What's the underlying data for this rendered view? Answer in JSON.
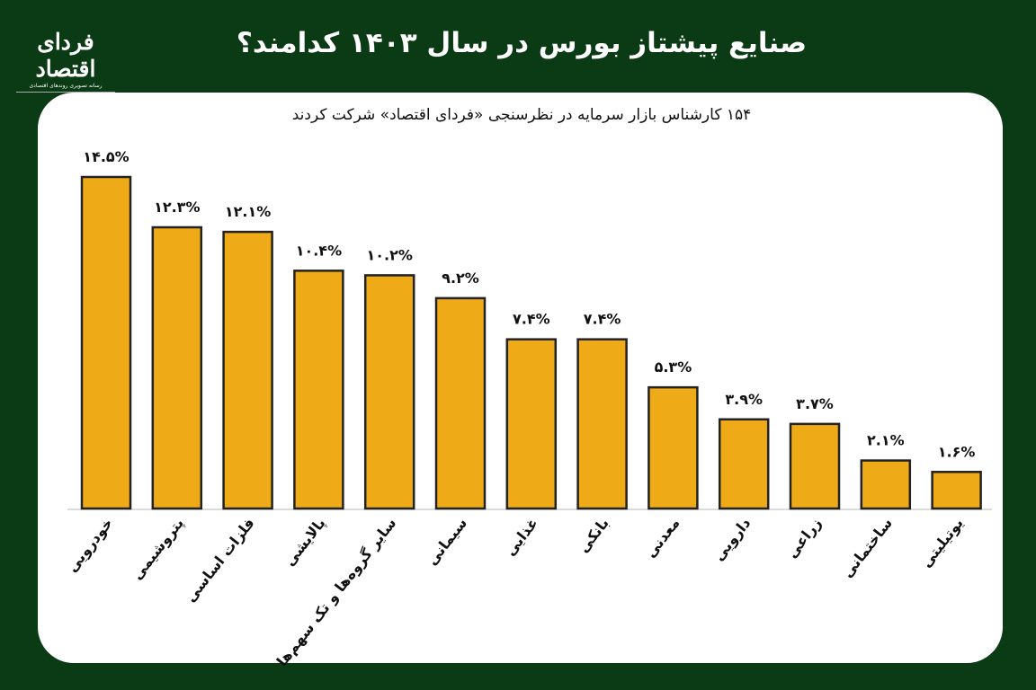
{
  "header": {
    "title": "صنایع پیشتاز بورس در سال ۱۴۰۳ کدامند؟"
  },
  "logo": {
    "name": "فردای اقتصاد",
    "tagline": "رسانه تصویری روندهای اقتصادی"
  },
  "colors": {
    "background": "#0b3b14",
    "bar": "#EFAA17",
    "bar_stroke": "#222222",
    "card": "#ffffff"
  },
  "chart_data": {
    "type": "bar",
    "title": "صنایع پیشتاز بورس در سال ۱۴۰۳ کدامند؟",
    "subtitle": "۱۵۴ کارشناس بازار سرمایه در نظرسنجی «فردای اقتصاد» شرکت کردند",
    "xlabel": "",
    "ylabel": "",
    "unit": "%",
    "ylim": [
      0,
      14.5
    ],
    "grid": false,
    "categories": [
      "خودرویی",
      "پتروشیمی",
      "فلزات اساسی",
      "پالایشی",
      "سایر گروه‌ها و تک سهم‌ها",
      "سیمانی",
      "غذایی",
      "بانکی",
      "معدنی",
      "دارویی",
      "زراعی",
      "ساختمانی",
      "یوتیلیتی"
    ],
    "values": [
      14.5,
      12.3,
      12.1,
      10.4,
      10.2,
      9.2,
      7.4,
      7.4,
      5.3,
      3.9,
      3.7,
      2.1,
      1.6
    ],
    "value_labels": [
      "۱۴.۵%",
      "۱۲.۳%",
      "۱۲.۱%",
      "۱۰.۴%",
      "۱۰.۲%",
      "۹.۲%",
      "۷.۴%",
      "۷.۴%",
      "۵.۳%",
      "۳.۹%",
      "۳.۷%",
      "۲.۱%",
      "۱.۶%"
    ]
  }
}
